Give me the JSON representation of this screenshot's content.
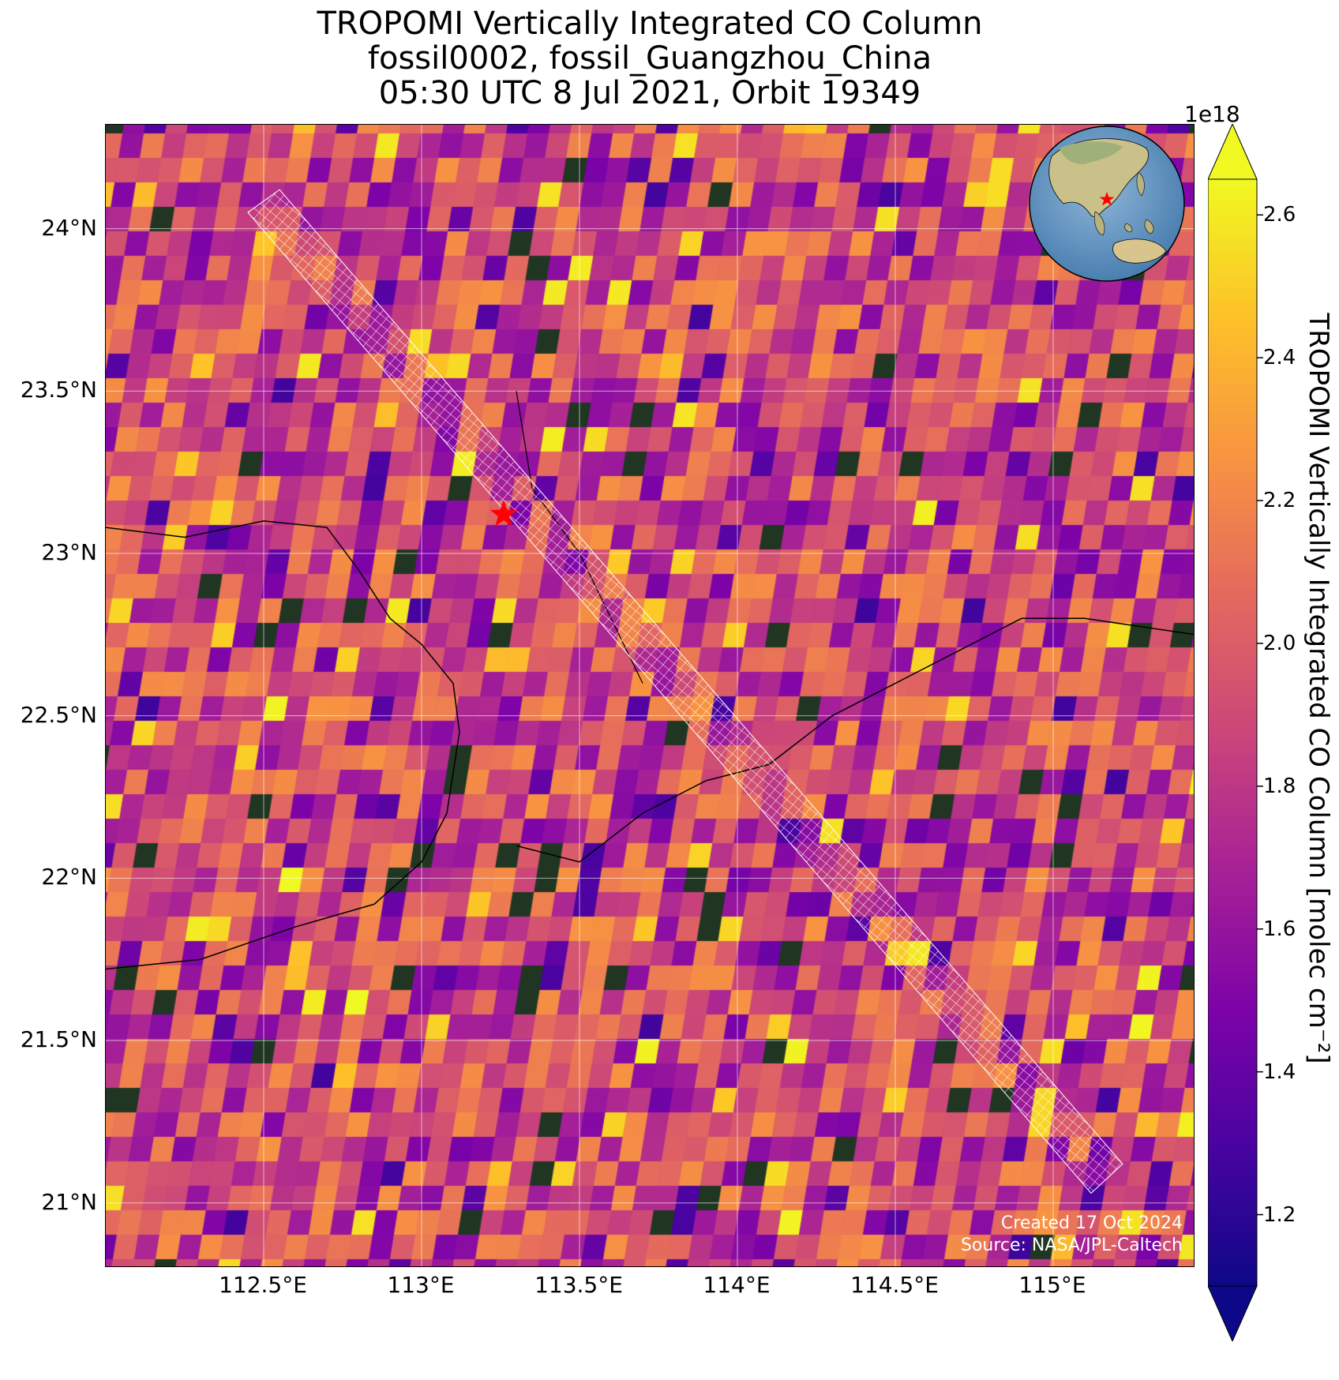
{
  "title": {
    "line1": "TROPOMI Vertically Integrated CO Column",
    "line2": "fossil0002, fossil_Guangzhou_China",
    "line3": "05:30 UTC 8 Jul 2021, Orbit 19349"
  },
  "map": {
    "lon_range": [
      112.0,
      115.45
    ],
    "lat_range": [
      20.8,
      24.32
    ],
    "lat_ticks": [
      {
        "value": 24.0,
        "label": "24°N"
      },
      {
        "value": 23.5,
        "label": "23.5°N"
      },
      {
        "value": 23.0,
        "label": "23°N"
      },
      {
        "value": 22.5,
        "label": "22.5°N"
      },
      {
        "value": 22.0,
        "label": "22°N"
      },
      {
        "value": 21.5,
        "label": "21.5°N"
      },
      {
        "value": 21.0,
        "label": "21°N"
      }
    ],
    "lon_ticks": [
      {
        "value": 112.5,
        "label": "112.5°E"
      },
      {
        "value": 113.0,
        "label": "113°E"
      },
      {
        "value": 113.5,
        "label": "113.5°E"
      },
      {
        "value": 114.0,
        "label": "114°E"
      },
      {
        "value": 114.5,
        "label": "114.5°E"
      },
      {
        "value": 115.0,
        "label": "115°E"
      }
    ],
    "target": {
      "name": "Guangzhou",
      "lon": 113.26,
      "lat": 23.12,
      "marker": "red-star"
    },
    "target_swath": [
      {
        "lon": 112.45,
        "lat": 24.05
      },
      {
        "lon": 112.55,
        "lat": 24.12
      },
      {
        "lon": 115.22,
        "lat": 21.12
      },
      {
        "lon": 115.12,
        "lat": 21.03
      }
    ],
    "credit_line1": "Created 17 Oct 2024",
    "credit_line2": "Source: NASA/JPL-Caltech"
  },
  "colorbar": {
    "label": "TROPOMI Vertically Integrated CO Column [molec cm⁻²]",
    "exponent": "1e18",
    "vmin": 1.1,
    "vmax": 2.65,
    "extend": "both",
    "colormap": "plasma",
    "ticks": [
      {
        "value": 1.2,
        "label": "1.2"
      },
      {
        "value": 1.4,
        "label": "1.4"
      },
      {
        "value": 1.6,
        "label": "1.6"
      },
      {
        "value": 1.8,
        "label": "1.8"
      },
      {
        "value": 2.0,
        "label": "2.0"
      },
      {
        "value": 2.2,
        "label": "2.2"
      },
      {
        "value": 2.4,
        "label": "2.4"
      },
      {
        "value": 2.6,
        "label": "2.6"
      }
    ]
  }
}
